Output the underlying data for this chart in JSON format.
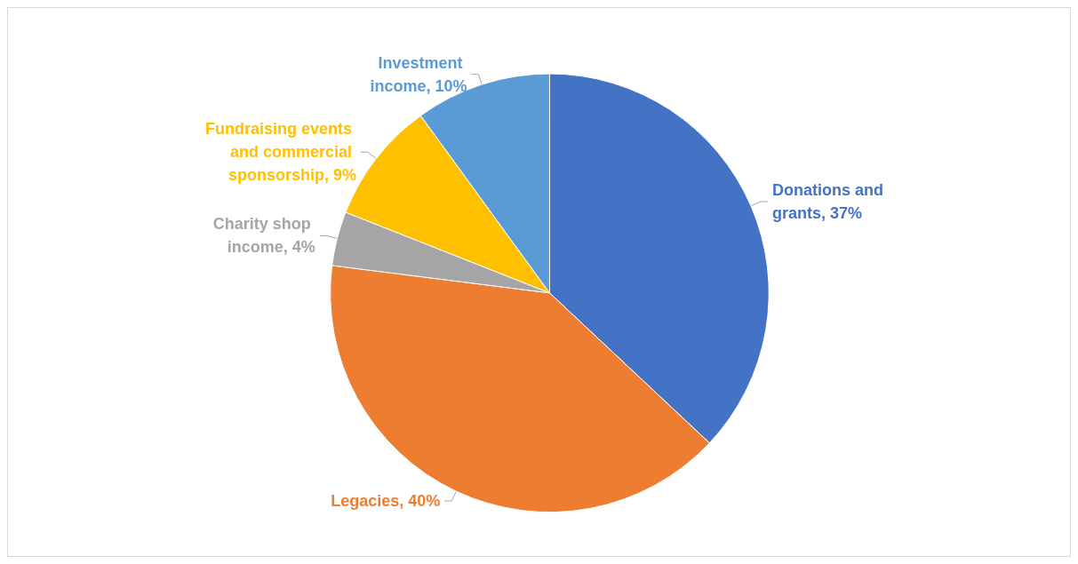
{
  "chart_data": {
    "type": "pie",
    "categories": [
      "Donations and grants",
      "Legacies",
      "Charity shop income",
      "Fundraising events and commercial sponsorship",
      "Investment income"
    ],
    "values": [
      37,
      40,
      4,
      9,
      10
    ],
    "value_labels": [
      "37%",
      "40%",
      "4%",
      "9%",
      "10%"
    ],
    "colors": [
      "#4472c4",
      "#ed7d31",
      "#a5a5a5",
      "#ffc000",
      "#5b9bd5"
    ],
    "legend": false
  }
}
